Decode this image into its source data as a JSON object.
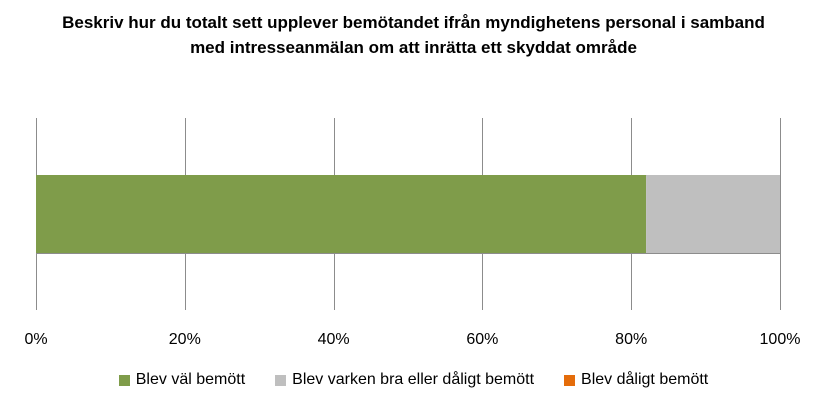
{
  "chart_data": {
    "type": "bar",
    "orientation": "horizontal",
    "stacked": true,
    "title": "Beskriv hur du totalt sett upplever bemötandet ifrån myndighetens personal i samband med intresseanmälan om att inrätta ett skyddat område",
    "xlim": [
      0,
      100
    ],
    "x_ticks": [
      "0%",
      "20%",
      "40%",
      "60%",
      "80%",
      "100%"
    ],
    "x_tick_values": [
      0,
      20,
      40,
      60,
      80,
      100
    ],
    "grid": true,
    "legend_position": "bottom",
    "categories": [
      ""
    ],
    "series": [
      {
        "name": "Blev väl bemött",
        "values": [
          82
        ],
        "color": "#7f9c4a"
      },
      {
        "name": "Blev varken bra eller dåligt bemött",
        "values": [
          18
        ],
        "color": "#bfbfbf"
      },
      {
        "name": "Blev dåligt bemött",
        "values": [
          0
        ],
        "color": "#e46c0a"
      }
    ]
  }
}
